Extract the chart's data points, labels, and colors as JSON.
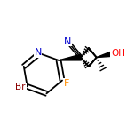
{
  "bg_color": "#ffffff",
  "bond_color": "#000000",
  "atom_colors": {
    "N": "#0000cd",
    "Br": "#8b0000",
    "F": "#ff8c00",
    "O": "#ff0000",
    "C": "#000000"
  },
  "figsize": [
    1.52,
    1.52
  ],
  "dpi": 100,
  "xlim": [
    -0.95,
    0.85
  ],
  "ylim": [
    -0.62,
    0.62
  ]
}
